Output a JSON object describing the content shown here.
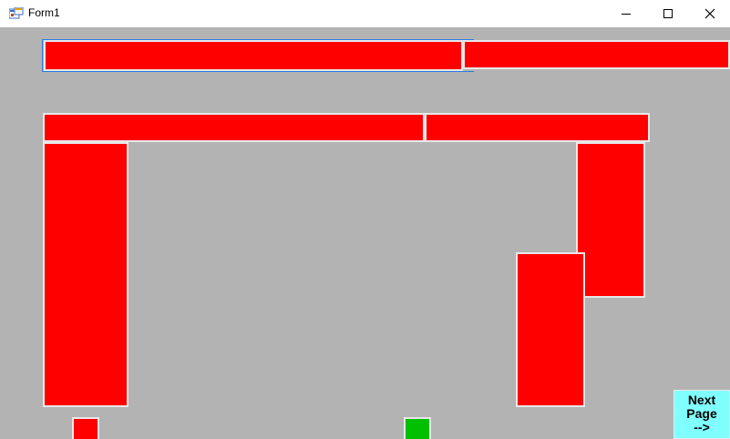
{
  "window": {
    "title": "Form1",
    "background": "#b3b3b3"
  },
  "colors": {
    "block": "#ff0000",
    "player": "#00c000",
    "button": "#80ffff"
  },
  "next_button": {
    "line1": "Next",
    "line2": "Page",
    "line3": "-->"
  },
  "icons": [
    "app-icon",
    "minimize-icon",
    "maximize-icon",
    "close-icon"
  ]
}
